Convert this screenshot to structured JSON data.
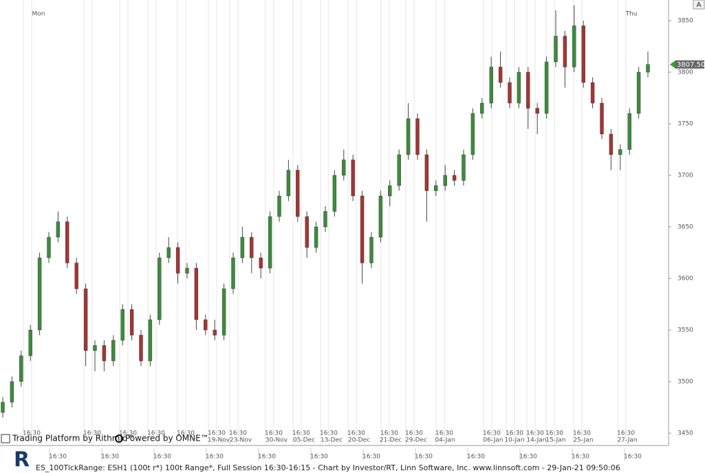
{
  "chart_data": {
    "type": "candlestick",
    "series": {
      "open": [
        3470,
        3480,
        3500,
        3525,
        3550,
        3620,
        3640,
        3655,
        3615,
        3590,
        3530,
        3535,
        3520,
        3540,
        3570,
        3545,
        3520,
        3560,
        3620,
        3630,
        3605,
        3610,
        3560,
        3550,
        3545,
        3590,
        3620,
        3640,
        3620,
        3610,
        3660,
        3680,
        3705,
        3660,
        3630,
        3650,
        3665,
        3700,
        3715,
        3680,
        3615,
        3640,
        3680,
        3690,
        3720,
        3755,
        3720,
        3685,
        3690,
        3700,
        3695,
        3720,
        3760,
        3770,
        3805,
        3790,
        3770,
        3800,
        3765,
        3760,
        3810,
        3835,
        3805,
        3845,
        3790,
        3770,
        3740,
        3720,
        3725,
        3760,
        3800
      ],
      "high": [
        3485,
        3505,
        3530,
        3555,
        3625,
        3645,
        3665,
        3660,
        3620,
        3595,
        3540,
        3540,
        3545,
        3575,
        3575,
        3550,
        3565,
        3625,
        3640,
        3635,
        3615,
        3615,
        3565,
        3560,
        3595,
        3625,
        3650,
        3645,
        3625,
        3665,
        3685,
        3715,
        3710,
        3665,
        3655,
        3670,
        3705,
        3725,
        3720,
        3685,
        3645,
        3685,
        3695,
        3725,
        3770,
        3760,
        3725,
        3695,
        3710,
        3705,
        3725,
        3765,
        3775,
        3815,
        3820,
        3795,
        3805,
        3805,
        3770,
        3815,
        3860,
        3840,
        3865,
        3850,
        3795,
        3775,
        3745,
        3730,
        3765,
        3805,
        3820
      ],
      "low": [
        3465,
        3475,
        3495,
        3520,
        3545,
        3615,
        3635,
        3610,
        3585,
        3515,
        3510,
        3510,
        3515,
        3535,
        3540,
        3515,
        3515,
        3555,
        3615,
        3595,
        3600,
        3550,
        3545,
        3540,
        3540,
        3585,
        3615,
        3605,
        3600,
        3605,
        3655,
        3675,
        3655,
        3620,
        3625,
        3645,
        3660,
        3695,
        3675,
        3595,
        3610,
        3635,
        3670,
        3685,
        3715,
        3715,
        3655,
        3680,
        3685,
        3690,
        3690,
        3715,
        3755,
        3765,
        3785,
        3765,
        3765,
        3745,
        3740,
        3755,
        3805,
        3785,
        3800,
        3785,
        3765,
        3735,
        3705,
        3705,
        3720,
        3755,
        3795
      ],
      "close": [
        3480,
        3500,
        3525,
        3550,
        3620,
        3640,
        3655,
        3615,
        3590,
        3530,
        3535,
        3520,
        3540,
        3570,
        3545,
        3520,
        3560,
        3620,
        3630,
        3605,
        3610,
        3560,
        3550,
        3545,
        3590,
        3620,
        3640,
        3620,
        3610,
        3660,
        3680,
        3705,
        3660,
        3630,
        3650,
        3665,
        3700,
        3715,
        3680,
        3615,
        3640,
        3680,
        3690,
        3720,
        3755,
        3720,
        3685,
        3690,
        3700,
        3695,
        3720,
        3760,
        3770,
        3805,
        3790,
        3770,
        3800,
        3765,
        3760,
        3810,
        3835,
        3805,
        3845,
        3790,
        3770,
        3740,
        3720,
        3725,
        3760,
        3800,
        3807.5
      ]
    },
    "up_color": "#3d8b3d",
    "down_color": "#a33535",
    "ylim": [
      3438,
      3870
    ],
    "yticks": [
      3450,
      3500,
      3550,
      3600,
      3650,
      3700,
      3750,
      3800,
      3850
    ],
    "last_price": {
      "value": 3807.5,
      "label": "3807.50"
    },
    "day_labels": [
      "Mon",
      "Thu"
    ],
    "session_times": [
      "16:30",
      "16:30",
      "16:30",
      "16:30",
      "16:30",
      "16:30",
      "16:30",
      "16:30",
      "16:30",
      "16:30",
      "16:30",
      "16:30",
      "16:30",
      "16:30",
      "16:30",
      "16:30",
      "16:30",
      "16:30",
      "16:30",
      "16:30"
    ],
    "date_labels": [
      "19-Nov",
      "23-Nov",
      "30-Nov",
      "05-Dec",
      "13-Dec",
      "20-Dec",
      "21-Dec",
      "29-Dec",
      "04-Jan",
      "06-Jan",
      "10-Jan",
      "14-Jan",
      "15-Jan",
      "25-Jan",
      "27-Jan"
    ],
    "time_labels": [
      "16:30",
      "16:30",
      "16:30",
      "16:30",
      "16:30",
      "16:30",
      "16:30",
      "16:30",
      "16:30",
      "16:30",
      "16:30",
      "16:30"
    ]
  },
  "branding": {
    "rithmic": "Trading Platform by Rithmic™",
    "omne": "Powered by OMNE™",
    "scale_button": "A"
  },
  "footer": "ES_100TickRange: ESH1 (100t r*) 100t Range*, Full Session 16:30-16:15 - Chart by Investor/RT, Linn Software, Inc. www.linnsoft.com - 29-Jan-21 09:50:06"
}
